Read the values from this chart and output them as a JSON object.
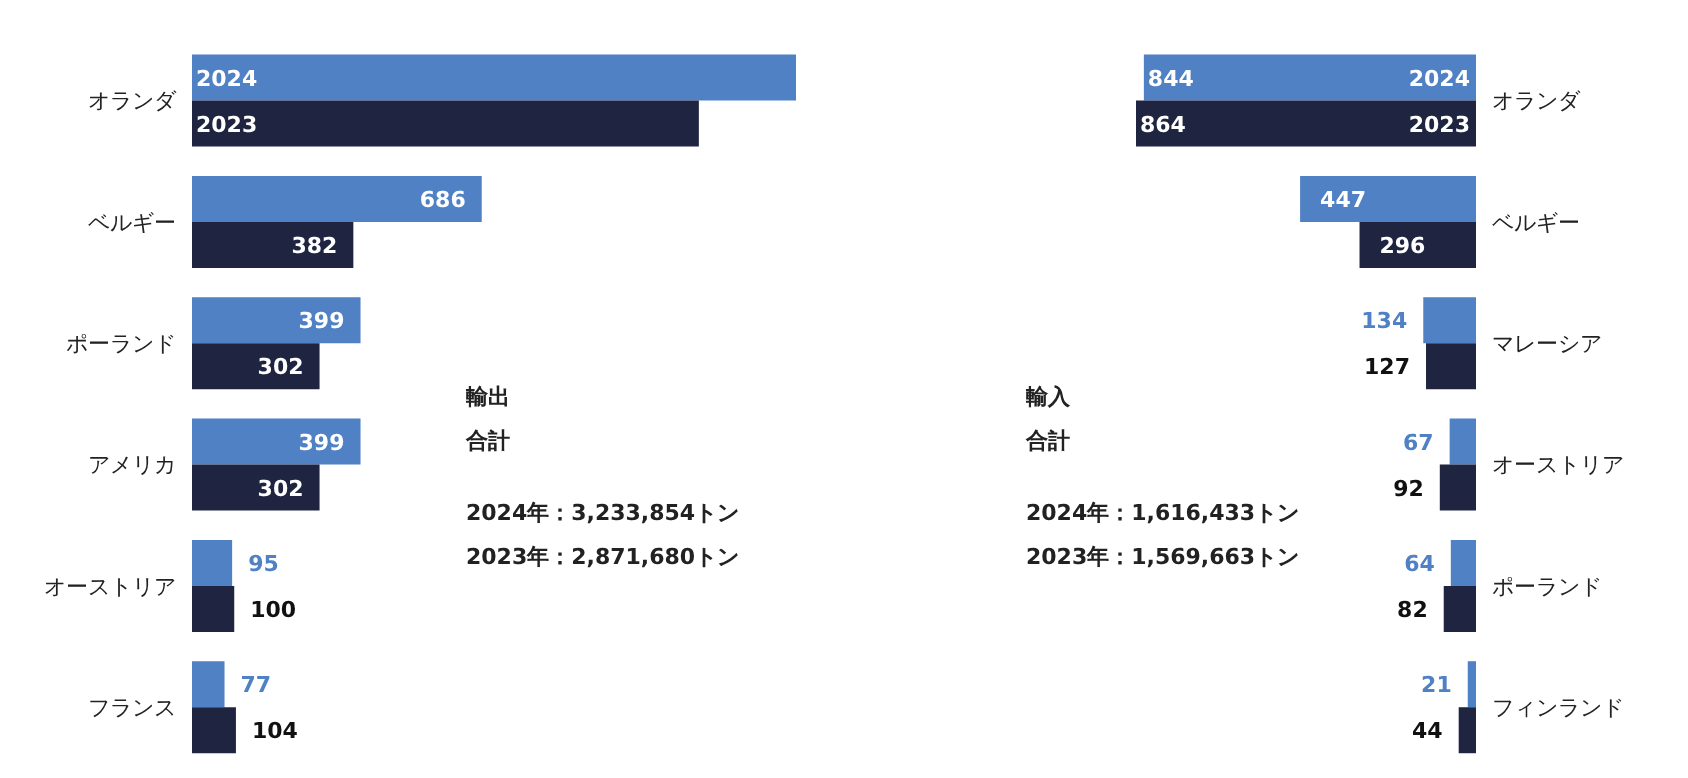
{
  "chart_data": [
    {
      "type": "bar",
      "orientation": "horizontal",
      "title": "輸出",
      "subtitle": "合計",
      "annotations": [
        "2024年：3,233,854トン",
        "2023年：2,871,680トン"
      ],
      "categories": [
        "オランダ",
        "ベルギー",
        "ポーランド",
        "アメリカ",
        "オーストリア",
        "フランス"
      ],
      "series": [
        {
          "name": "2024",
          "color": "#4f81c4",
          "values": [
            1430,
            686,
            399,
            399,
            95,
            77
          ],
          "value_labels": [
            null,
            "686",
            "399",
            "399",
            "95",
            "77"
          ]
        },
        {
          "name": "2023",
          "color": "#1f2540",
          "values": [
            1200,
            382,
            302,
            302,
            100,
            104
          ],
          "value_labels": [
            null,
            "382",
            "302",
            "302",
            "100",
            "104"
          ]
        }
      ],
      "tick_labels": "y",
      "grid": false,
      "legend": false
    },
    {
      "type": "bar",
      "orientation": "horizontal",
      "title": "輸入",
      "subtitle": "合計",
      "annotations": [
        "2024年：1,616,433トン",
        "2023年：1,569,663トン"
      ],
      "categories": [
        "オランダ",
        "ベルギー",
        "マレーシア",
        "オーストリア",
        "ポーランド",
        "フィンランド"
      ],
      "series": [
        {
          "name": "2024",
          "color": "#4f81c4",
          "values": [
            844,
            447,
            134,
            67,
            64,
            21
          ]
        },
        {
          "name": "2023",
          "color": "#1f2540",
          "values": [
            864,
            296,
            127,
            92,
            82,
            44
          ]
        }
      ],
      "tick_labels": "y",
      "data_labels": true,
      "grid": false,
      "legend": false
    }
  ]
}
